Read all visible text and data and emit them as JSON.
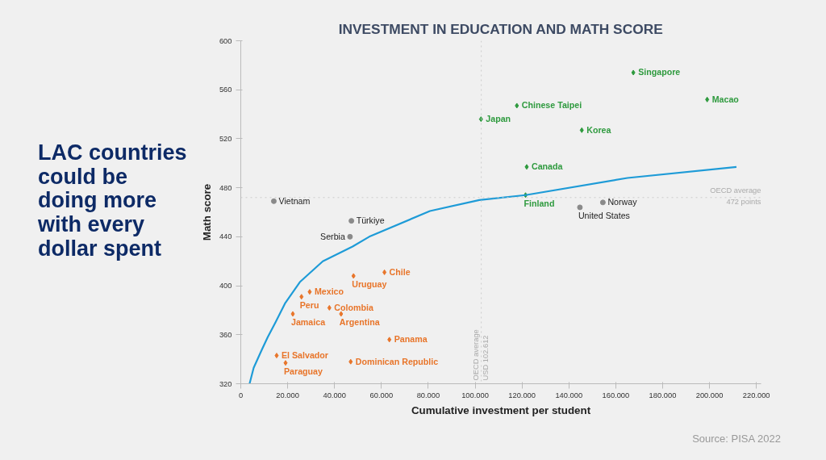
{
  "chart_data": {
    "type": "scatter",
    "title": "INVESTMENT IN EDUCATION AND MATH SCORE",
    "subtitle": "LAC countries could be doing more with every dollar spent",
    "xlabel": "Cumulative investment per student",
    "ylabel": "Math score",
    "xlim": [
      0,
      222000
    ],
    "ylim": [
      320,
      600
    ],
    "xticks": [
      0,
      {
        "value": 20000,
        "label": "20.000"
      },
      {
        "value": 40000,
        "label": "40.000"
      },
      {
        "value": 60000,
        "label": "60.000"
      },
      {
        "value": 80000,
        "label": "80.000"
      },
      {
        "value": 100000,
        "label": "100.000"
      },
      {
        "value": 120000,
        "label": "120.000"
      },
      {
        "value": 140000,
        "label": "140.000"
      },
      {
        "value": 160000,
        "label": "160.000"
      },
      {
        "value": 180000,
        "label": "180.000"
      },
      {
        "value": 200000,
        "label": "200.000"
      },
      {
        "value": 220000,
        "label": "220.000"
      }
    ],
    "yticks": [
      320,
      360,
      400,
      440,
      480,
      520,
      560,
      600
    ],
    "grid": false,
    "marker": "diamond",
    "series": [
      {
        "color": "#2e9a3e",
        "x": [
          102500,
          117800,
          167500,
          199000,
          145500,
          122000,
          121500
        ],
        "values": [
          536,
          547,
          574,
          552,
          527,
          497,
          474
        ]
      },
      {
        "color": "#8a8a8a",
        "marker": "circle",
        "x": [
          14100,
          47200,
          46600,
          144700,
          154500
        ],
        "values": [
          469,
          453,
          440,
          464,
          468
        ]
      },
      {
        "color": "#e8752a",
        "x": [
          61300,
          48100,
          29400,
          25900,
          37800,
          22200,
          42800,
          63400,
          15300,
          19100,
          46900
        ],
        "values": [
          411,
          408,
          395,
          391,
          382,
          377,
          377,
          356,
          343,
          337,
          338
        ]
      },
      {
        "type": "line",
        "color": "#1e9bd7",
        "marker": "none",
        "x": [
          3750,
          5500,
          8800,
          11500,
          14800,
          19000,
          25200,
          35000,
          47700,
          54800,
          80700,
          101800,
          121500,
          165000,
          211500
        ],
        "values": [
          320,
          333,
          347,
          358,
          370,
          386,
          403,
          420,
          432,
          440,
          461,
          470,
          474,
          488,
          497
        ]
      }
    ],
    "ref_lines": [
      {
        "axis": "x",
        "value": 102612,
        "label": "OECD average\nUSD 102.612",
        "color": "#cccccc",
        "line_style": "dotted"
      },
      {
        "axis": "y",
        "value": 472,
        "label": "OECD average\n472 points",
        "color": "#cccccc",
        "line_style": "dotted"
      }
    ],
    "annotations": [
      {
        "text": "Japan",
        "x": 102500,
        "y": 536
      },
      {
        "text": "Chinese Taipei",
        "x": 117800,
        "y": 547
      },
      {
        "text": "Singapore",
        "x": 167500,
        "y": 574
      },
      {
        "text": "Macao",
        "x": 199000,
        "y": 552
      },
      {
        "text": "Korea",
        "x": 145500,
        "y": 527
      },
      {
        "text": "Canada",
        "x": 122000,
        "y": 497
      },
      {
        "text": "Finland",
        "x": 121500,
        "y": 474
      },
      {
        "text": "Vietnam",
        "x": 14100,
        "y": 469
      },
      {
        "text": "Türkiye",
        "x": 47200,
        "y": 453
      },
      {
        "text": "Serbia",
        "x": 46600,
        "y": 440
      },
      {
        "text": "United States",
        "x": 144700,
        "y": 464
      },
      {
        "text": "Norway",
        "x": 154500,
        "y": 468
      },
      {
        "text": "Chile",
        "x": 61300,
        "y": 411
      },
      {
        "text": "Uruguay",
        "x": 48100,
        "y": 408
      },
      {
        "text": "Mexico",
        "x": 29400,
        "y": 395
      },
      {
        "text": "Peru",
        "x": 25900,
        "y": 391
      },
      {
        "text": "Colombia",
        "x": 37800,
        "y": 382
      },
      {
        "text": "Jamaica",
        "x": 22200,
        "y": 377
      },
      {
        "text": "Argentina",
        "x": 42800,
        "y": 377
      },
      {
        "text": "Panama",
        "x": 63400,
        "y": 356
      },
      {
        "text": "El Salvador",
        "x": 15300,
        "y": 343
      },
      {
        "text": "Paraguay",
        "x": 19100,
        "y": 337
      },
      {
        "text": "Dominican Republic",
        "x": 46900,
        "y": 338
      },
      "Source: PISA 2022"
    ]
  }
}
